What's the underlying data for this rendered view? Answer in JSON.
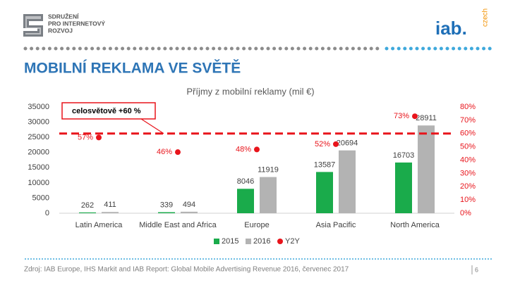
{
  "header": {
    "logo_left": [
      "SDRUŽENÍ",
      "PRO INTERNETOVÝ",
      "ROZVOJ"
    ],
    "logo_right": "iab.",
    "logo_right_sub": "czech"
  },
  "title": "MOBILNÍ REKLAMA VE SVĚTĚ",
  "chart_data": {
    "type": "bar",
    "title": "Příjmy z mobilní reklamy (mil €)",
    "categories": [
      "Latin America",
      "Middle East and Africa",
      "Europe",
      "Asia Pacific",
      "North America"
    ],
    "series": [
      {
        "name": "2015",
        "color": "#1aab4b",
        "values": [
          262,
          339,
          8046,
          13587,
          16703
        ]
      },
      {
        "name": "2016",
        "color": "#b3b3b3",
        "values": [
          411,
          494,
          11919,
          20694,
          28911
        ]
      },
      {
        "name": "Y2Y",
        "type": "scatter",
        "axis": "y2",
        "color": "#e8141b",
        "values": [
          57,
          46,
          48,
          52,
          73
        ],
        "value_labels": [
          "57%",
          "46%",
          "48%",
          "52%",
          "73%"
        ]
      }
    ],
    "ylim": [
      0,
      35000
    ],
    "yticks": [
      0,
      5000,
      10000,
      15000,
      20000,
      25000,
      30000,
      35000
    ],
    "y2lim": [
      0,
      80
    ],
    "y2ticks": [
      {
        "value": 0,
        "label": "0%"
      },
      {
        "value": 10,
        "label": "10%"
      },
      {
        "value": 20,
        "label": "20%"
      },
      {
        "value": 30,
        "label": "30%"
      },
      {
        "value": 40,
        "label": "40%"
      },
      {
        "value": 50,
        "label": "50%"
      },
      {
        "value": 60,
        "label": "60%"
      },
      {
        "value": 70,
        "label": "70%"
      },
      {
        "value": 80,
        "label": "80%"
      }
    ],
    "reference_line": {
      "value": 60,
      "axis": "y2",
      "label": "celosvětově +60 %",
      "color": "#e8141b"
    },
    "grid": false,
    "legend": "bottom"
  },
  "footer": {
    "source": "Zdroj: IAB Europe, IHS Markit and IAB Report: Global Mobile Advertising Revenue 2016, červenec 2017",
    "page": "6"
  }
}
